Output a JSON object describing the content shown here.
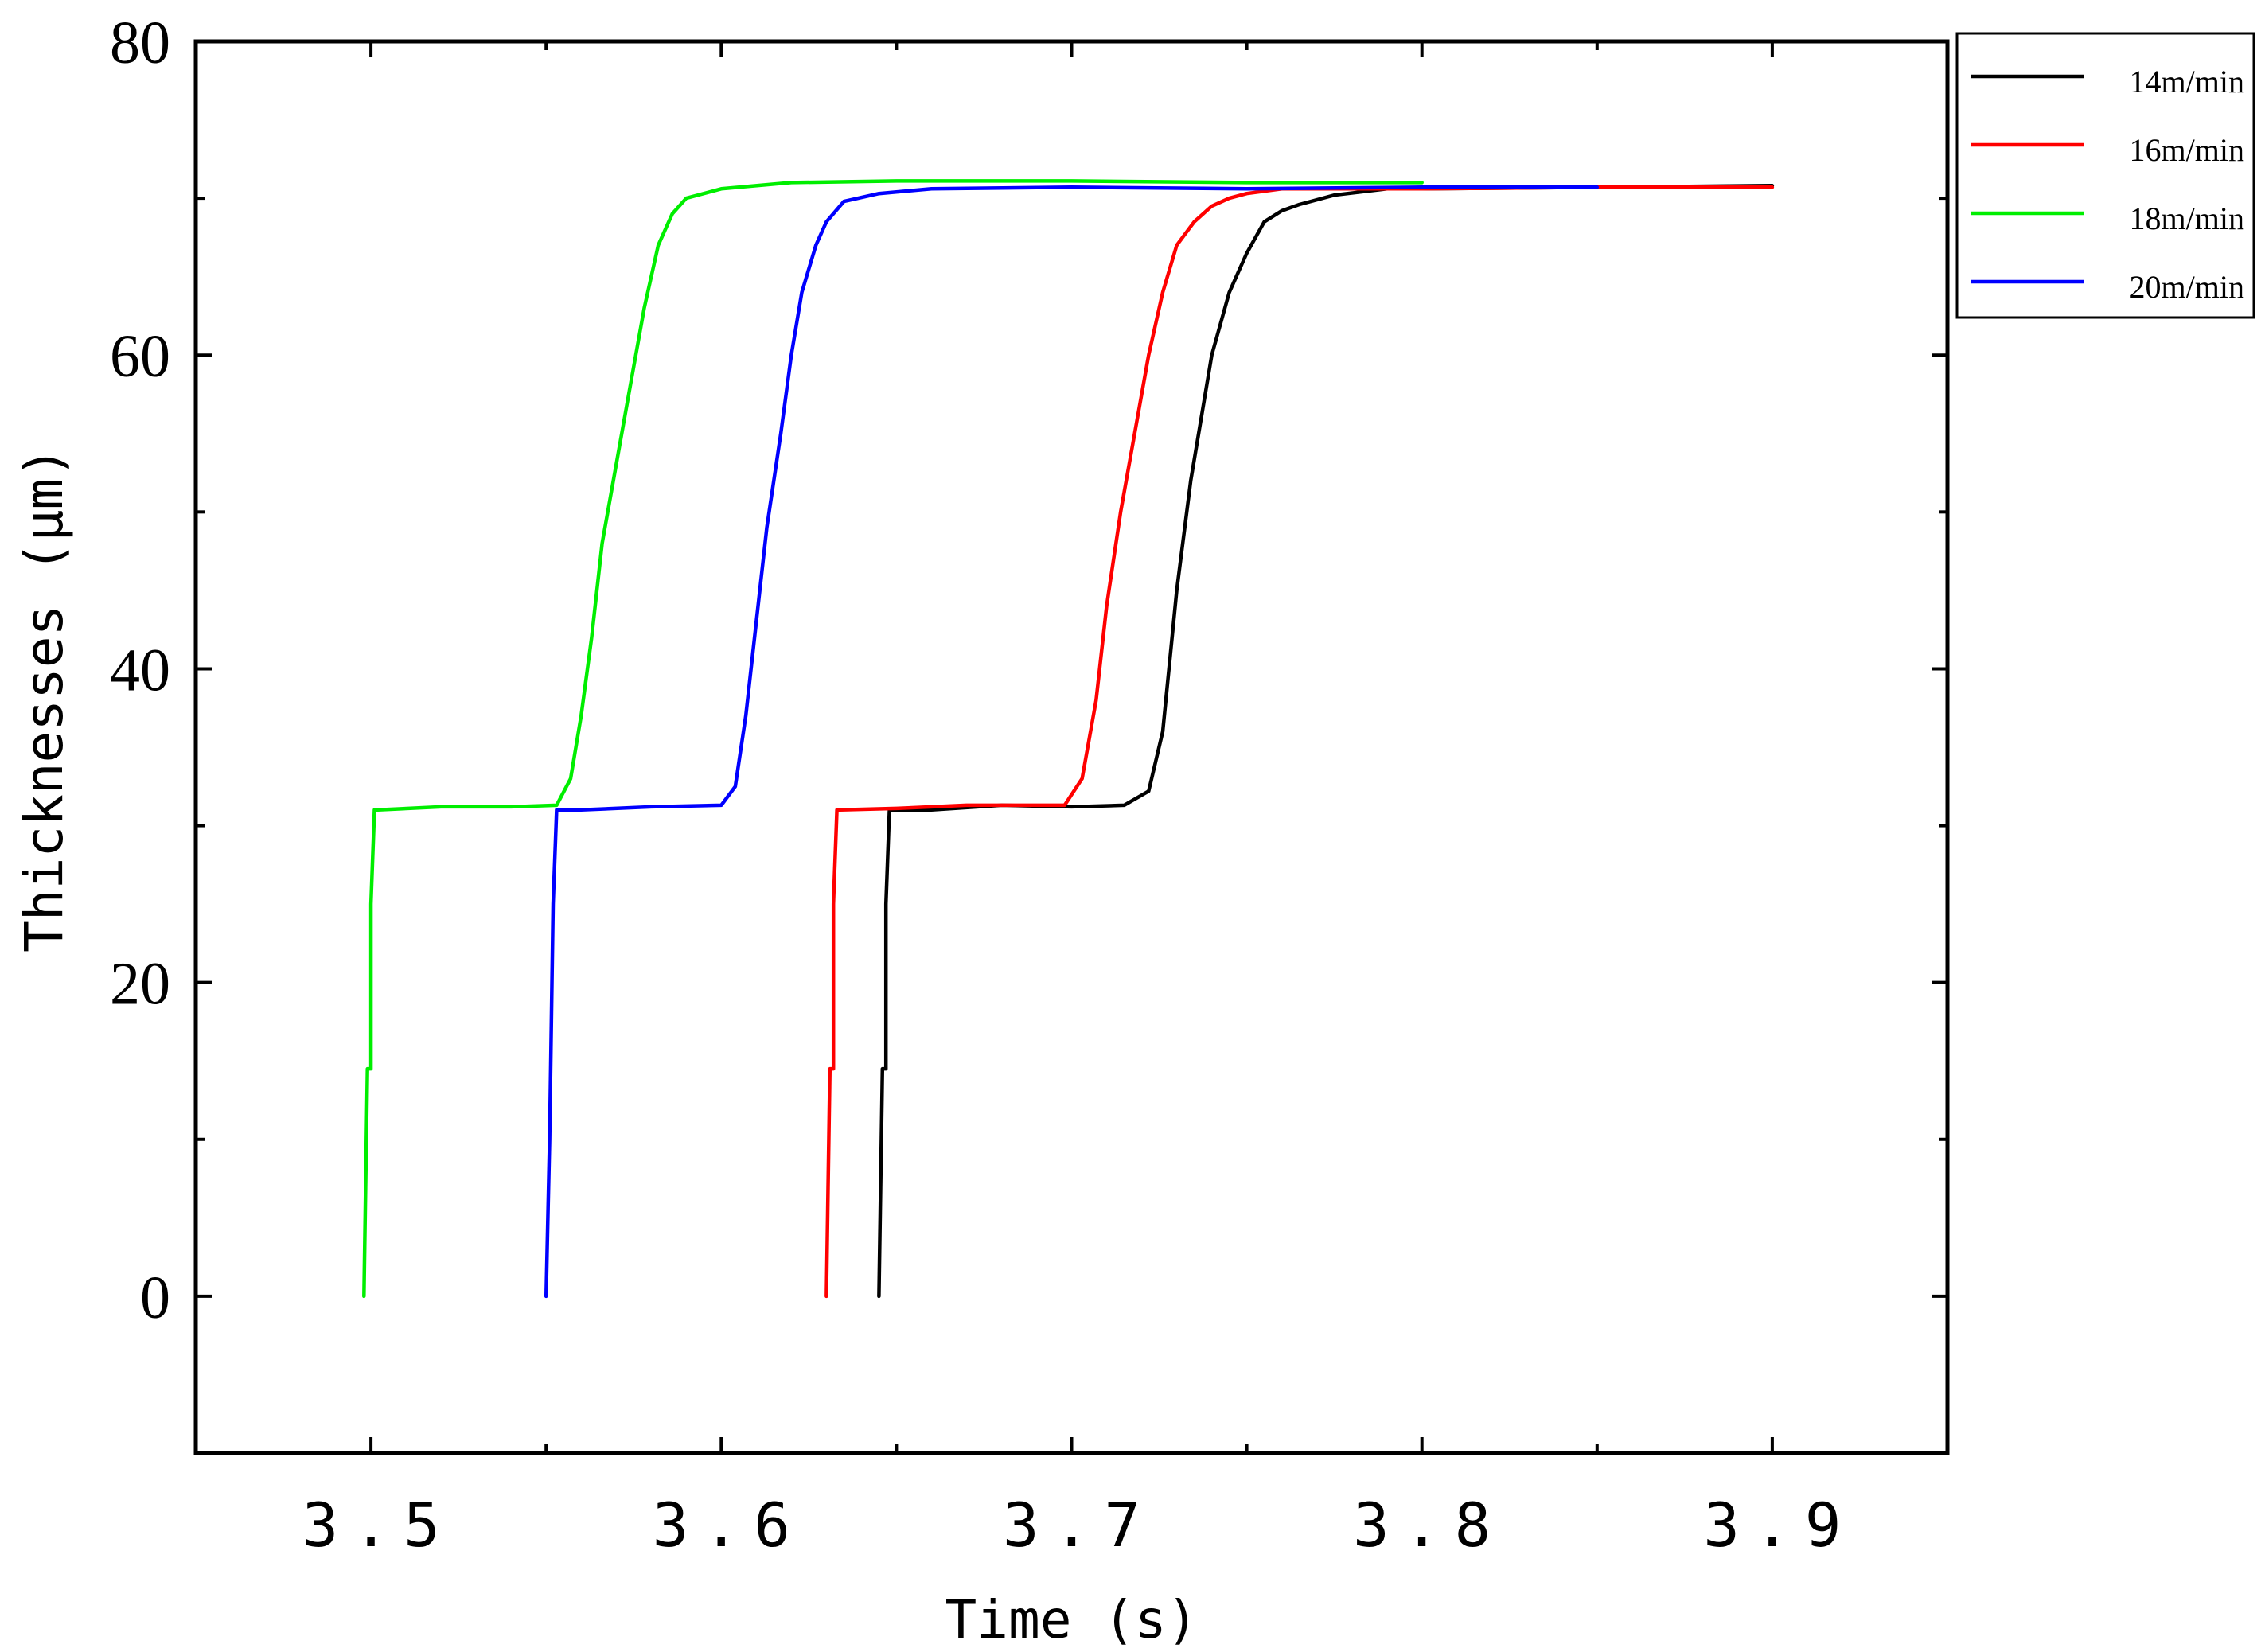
{
  "chart_data": {
    "type": "line",
    "title": "",
    "xlabel": "Time (s)",
    "ylabel": "Thicknesses (μm)",
    "xlim": [
      3.45,
      3.95
    ],
    "ylim": [
      -10,
      80
    ],
    "grid": false,
    "legend_position": "top-right-outside",
    "x_ticks": [
      3.5,
      3.6,
      3.7,
      3.8,
      3.9
    ],
    "x_tick_labels": [
      "3.5",
      "3.6",
      "3.7",
      "3.8",
      "3.9"
    ],
    "y_ticks": [
      0,
      20,
      40,
      60,
      80
    ],
    "y_tick_labels": [
      "0",
      "20",
      "40",
      "60",
      "80"
    ],
    "series": [
      {
        "name": "14m/min",
        "color": "#000000",
        "x": [
          3.645,
          3.646,
          3.647,
          3.647,
          3.648,
          3.649,
          3.66,
          3.68,
          3.7,
          3.715,
          3.722,
          3.726,
          3.73,
          3.734,
          3.737,
          3.74,
          3.745,
          3.75,
          3.755,
          3.76,
          3.765,
          3.775,
          3.79,
          3.8,
          3.85,
          3.9
        ],
        "y": [
          0,
          14.5,
          14.5,
          25,
          31,
          31.0,
          31.0,
          31.3,
          31.2,
          31.3,
          32.2,
          36,
          45,
          52,
          56,
          60,
          64,
          66.5,
          68.5,
          69.2,
          69.6,
          70.2,
          70.6,
          70.6,
          70.7,
          70.8
        ]
      },
      {
        "name": "16m/min",
        "color": "#ff0000",
        "x": [
          3.63,
          3.631,
          3.632,
          3.632,
          3.633,
          3.634,
          3.65,
          3.67,
          3.698,
          3.703,
          3.707,
          3.71,
          3.714,
          3.718,
          3.722,
          3.726,
          3.73,
          3.735,
          3.74,
          3.745,
          3.75,
          3.76,
          3.8,
          3.85,
          3.9
        ],
        "y": [
          0,
          14.5,
          14.5,
          25,
          31,
          31.0,
          31.1,
          31.3,
          31.3,
          33,
          38,
          44,
          50,
          55,
          60,
          64,
          67,
          68.5,
          69.5,
          70.0,
          70.3,
          70.6,
          70.6,
          70.7,
          70.7
        ]
      },
      {
        "name": "18m/min",
        "color": "#00ee00",
        "x": [
          3.498,
          3.499,
          3.5,
          3.5,
          3.501,
          3.502,
          3.52,
          3.54,
          3.553,
          3.557,
          3.56,
          3.563,
          3.566,
          3.57,
          3.574,
          3.578,
          3.582,
          3.586,
          3.59,
          3.6,
          3.62,
          3.65,
          3.7,
          3.75,
          3.8
        ],
        "y": [
          0,
          14.5,
          14.5,
          25,
          31,
          31.0,
          31.2,
          31.2,
          31.3,
          33,
          37,
          42,
          48,
          53,
          58,
          63,
          67,
          69,
          70,
          70.6,
          71.0,
          71.1,
          71.1,
          71.0,
          71.0
        ]
      },
      {
        "name": "20m/min",
        "color": "#0000ff",
        "x": [
          3.55,
          3.551,
          3.552,
          3.553,
          3.56,
          3.58,
          3.6,
          3.604,
          3.607,
          3.61,
          3.613,
          3.617,
          3.62,
          3.623,
          3.627,
          3.63,
          3.635,
          3.645,
          3.66,
          3.7,
          3.75,
          3.8,
          3.85
        ],
        "y": [
          0,
          10,
          25,
          31,
          31.0,
          31.2,
          31.3,
          32.5,
          37,
          43,
          49,
          55,
          60,
          64,
          67,
          68.5,
          69.8,
          70.3,
          70.6,
          70.7,
          70.6,
          70.7,
          70.7
        ]
      }
    ]
  }
}
